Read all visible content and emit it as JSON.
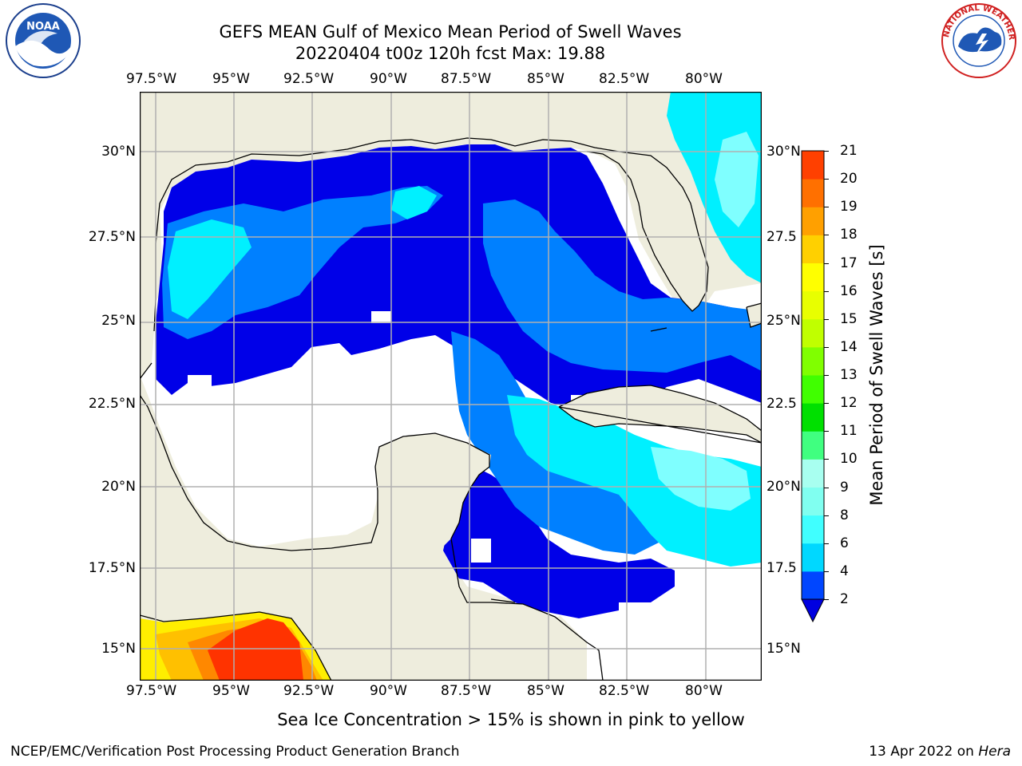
{
  "title": {
    "line1": "GEFS MEAN Gulf of Mexico Mean Period of Swell Waves",
    "line2": "20220404 t00z 120h fcst   Max: 19.88"
  },
  "map": {
    "lon_labels": [
      "97.5°W",
      "95°W",
      "92.5°W",
      "90°W",
      "87.5°W",
      "85°W",
      "82.5°W",
      "80°W"
    ],
    "lat_labels_left": [
      "30°N",
      "27.5°N",
      "25°N",
      "22.5°N",
      "20°N",
      "17.5°N",
      "15°N"
    ],
    "lat_labels_right": [
      "30°N",
      "27.5",
      "25°N",
      "22.5",
      "20°N",
      "17.5",
      "15°N"
    ],
    "colors": {
      "land": "#eeeddd",
      "no_data": "#ffffff",
      "coastline": "#000000",
      "grid": "#b0b0b0"
    }
  },
  "colorbar": {
    "label": "Mean Period of Swell Waves [s]",
    "ticks": [
      "2",
      "4",
      "6",
      "8",
      "9",
      "10",
      "11",
      "12",
      "13",
      "14",
      "15",
      "16",
      "17",
      "18",
      "19",
      "20",
      "21"
    ],
    "colors": [
      "#0046ff",
      "#00d8ff",
      "#40ffff",
      "#80fff0",
      "#a8fff0",
      "#40ff80",
      "#00e000",
      "#40ff00",
      "#80ff00",
      "#c0ff00",
      "#e8ff00",
      "#ffff00",
      "#ffd000",
      "#ffa000",
      "#ff7000",
      "#ff4000",
      "#ff0000"
    ],
    "extend_color": "#0000e0"
  },
  "footer": {
    "note": "Sea Ice Concentration > 15% is shown in pink to yellow",
    "org": "NCEP/EMC/Verification Post Processing Product Generation Branch",
    "date": "13 Apr 2022 on ",
    "machine": "Hera"
  },
  "logos": {
    "noaa_text": "NOAA",
    "nws_text": "NATIONAL WEATHER SERVICE"
  }
}
